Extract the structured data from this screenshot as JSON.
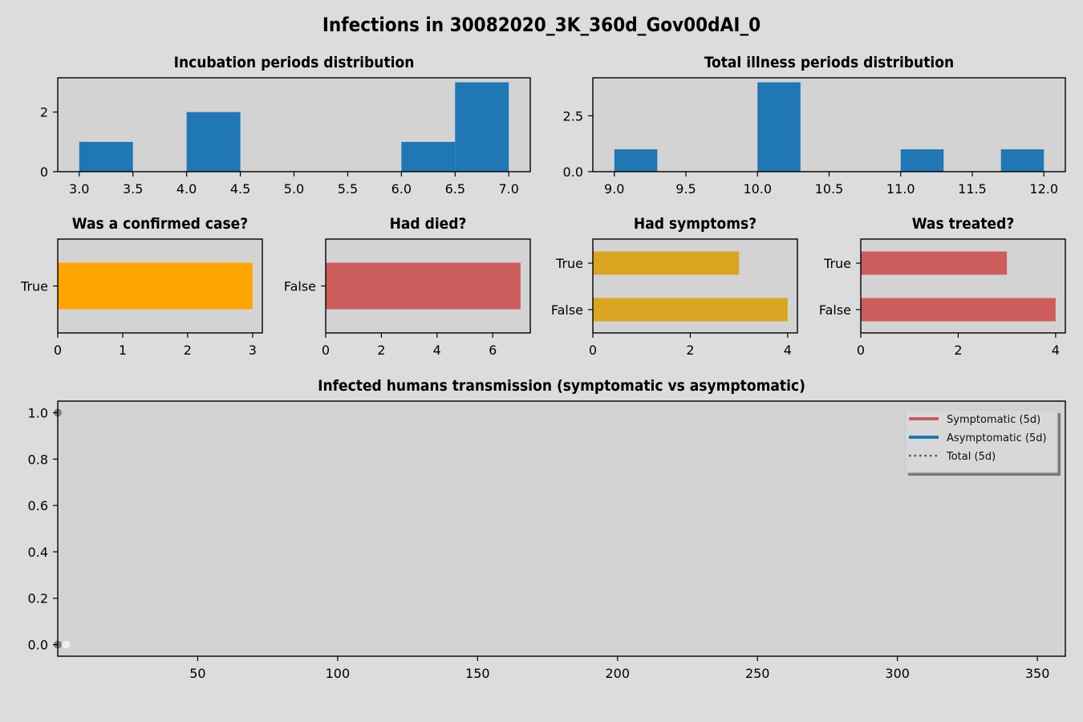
{
  "figure_title": "Infections in 30082020_3K_360d_Gov00dAI_0",
  "colors": {
    "background": "#dcdcdc",
    "plot_bg": "#d3d3d3",
    "blue": "#1f77b4",
    "orange": "#ffa500",
    "indianred": "#cd5c5c",
    "goldenrod": "#daa520",
    "dots_dark": "#808080",
    "dots_light": "#f0f0f0"
  },
  "chart_data": [
    {
      "id": "incubation",
      "type": "bar",
      "title": "Incubation periods distribution",
      "bins": [
        [
          3.0,
          3.5
        ],
        [
          4.0,
          4.5
        ],
        [
          6.0,
          6.5
        ],
        [
          6.5,
          7.0
        ]
      ],
      "values": [
        1,
        2,
        1,
        3
      ],
      "color": "#1f77b4",
      "xlim": [
        2.8,
        7.2
      ],
      "ylim": [
        0,
        3.15
      ],
      "xticks": [
        "3.0",
        "3.5",
        "4.0",
        "4.5",
        "5.0",
        "5.5",
        "6.0",
        "6.5",
        "7.0"
      ],
      "yticks": [
        "0",
        "2"
      ]
    },
    {
      "id": "illness",
      "type": "bar",
      "title": "Total illness periods distribution",
      "bins": [
        [
          9.0,
          9.3
        ],
        [
          10.0,
          10.3
        ],
        [
          11.0,
          11.3
        ],
        [
          11.7,
          12.0
        ]
      ],
      "values": [
        1,
        4,
        1,
        1
      ],
      "color": "#1f77b4",
      "xlim": [
        8.85,
        12.15
      ],
      "ylim": [
        0,
        4.2
      ],
      "xticks": [
        "9.0",
        "9.5",
        "10.0",
        "10.5",
        "11.0",
        "11.5",
        "12.0"
      ],
      "yticks": [
        "0.0",
        "2.5"
      ]
    },
    {
      "id": "confirmed",
      "type": "bar",
      "orientation": "horizontal",
      "title": "Was a confirmed case?",
      "categories": [
        "True"
      ],
      "values": [
        3
      ],
      "color": "#ffa500",
      "xlim": [
        0,
        3.15
      ],
      "xticks": [
        "0",
        "1",
        "2",
        "3"
      ]
    },
    {
      "id": "died",
      "type": "bar",
      "orientation": "horizontal",
      "title": "Had died?",
      "categories": [
        "False"
      ],
      "values": [
        7
      ],
      "color": "#cd5c5c",
      "xlim": [
        0,
        7.35
      ],
      "xticks": [
        "0",
        "2",
        "4",
        "6"
      ]
    },
    {
      "id": "symptoms",
      "type": "bar",
      "orientation": "horizontal",
      "title": "Had symptoms?",
      "categories": [
        "True",
        "False"
      ],
      "values": [
        3,
        4
      ],
      "color": "#daa520",
      "xlim": [
        0,
        4.2
      ],
      "xticks": [
        "0",
        "2",
        "4"
      ]
    },
    {
      "id": "treated",
      "type": "bar",
      "orientation": "horizontal",
      "title": "Was treated?",
      "categories": [
        "True",
        "False"
      ],
      "values": [
        3,
        4
      ],
      "color": "#cd5c5c",
      "xlim": [
        0,
        4.2
      ],
      "xticks": [
        "0",
        "2",
        "4"
      ]
    },
    {
      "id": "transmission",
      "type": "line",
      "title": "Infected humans transmission (symptomatic vs asymptomatic)",
      "xlim": [
        0,
        360
      ],
      "ylim": [
        -0.05,
        1.05
      ],
      "xticks": [
        "50",
        "100",
        "150",
        "200",
        "250",
        "300",
        "350"
      ],
      "yticks": [
        "0.0",
        "0.2",
        "0.4",
        "0.6",
        "0.8",
        "1.0"
      ],
      "points": [
        {
          "x": 0,
          "y": 1.0,
          "color": "#808080"
        },
        {
          "x": 0,
          "y": 0.0,
          "color": "#808080"
        },
        {
          "x": 3,
          "y": 0.0,
          "color": "#f0f0f0"
        }
      ],
      "legend": {
        "position": "upper right",
        "entries": [
          {
            "label": "Symptomatic (5d)",
            "color": "#cd5c5c",
            "style": "solid"
          },
          {
            "label": "Asymptomatic (5d)",
            "color": "#1f77b4",
            "style": "solid"
          },
          {
            "label": "Total (5d)",
            "color": "#555555",
            "style": "dotted"
          }
        ]
      }
    }
  ]
}
